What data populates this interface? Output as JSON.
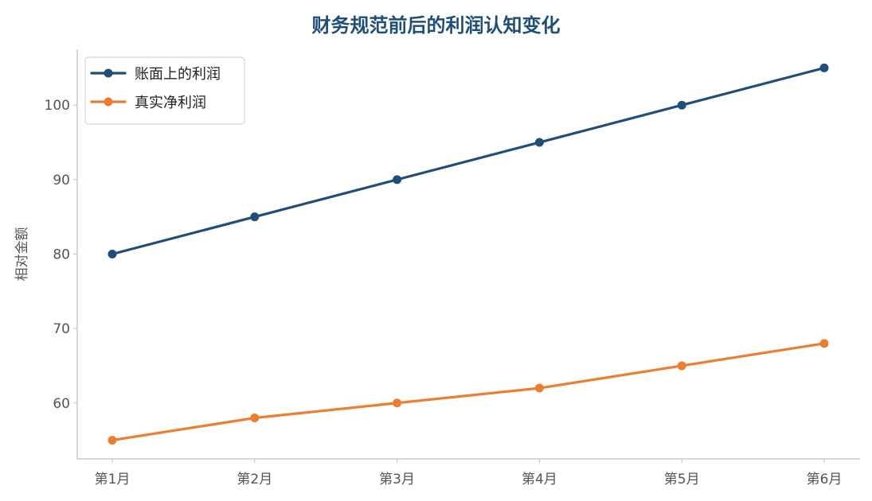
{
  "chart_data": {
    "type": "line",
    "title": "财务规范前后的利润认知变化",
    "xlabel": "",
    "ylabel": "相对金额",
    "categories": [
      "第1月",
      "第2月",
      "第3月",
      "第4月",
      "第5月",
      "第6月"
    ],
    "series": [
      {
        "name": "账面上的利润",
        "values": [
          80,
          85,
          90,
          95,
          100,
          105
        ],
        "color": "#1f4e79"
      },
      {
        "name": "真实净利润",
        "values": [
          55,
          58,
          60,
          62,
          65,
          68
        ],
        "color": "#ed7d31"
      }
    ],
    "ylim": [
      52.5,
      107.5
    ],
    "yticks": [
      60,
      70,
      80,
      90,
      100
    ],
    "grid": false,
    "legend": "top-left",
    "colors": {
      "title": "#1f4e79",
      "axis": "#bfbfbf",
      "tick_label": "#555555"
    }
  }
}
